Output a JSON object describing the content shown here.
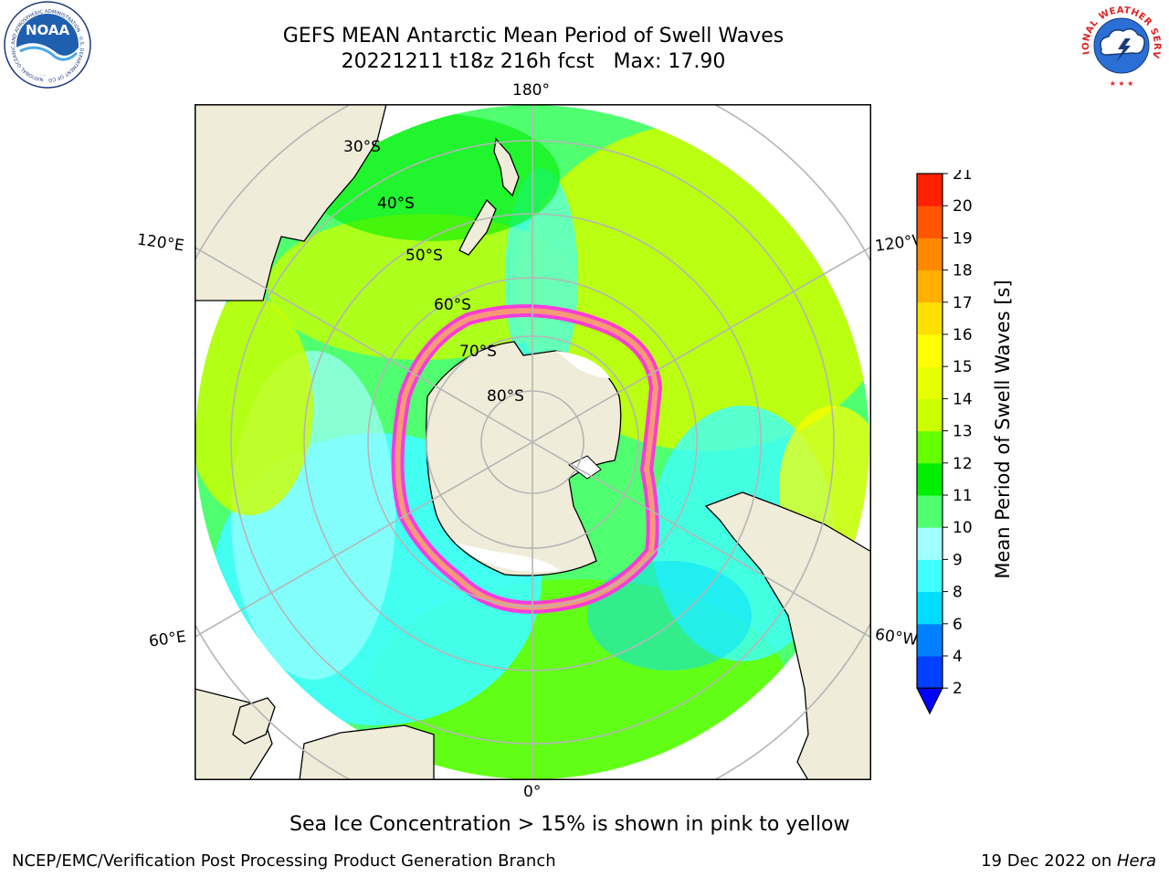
{
  "header": {
    "title_line1": "GEFS MEAN Antarctic Mean Period of Swell Waves",
    "title_line2": "20221211 t18z 216h fcst   Max: 17.90"
  },
  "logos": {
    "left": {
      "name": "noaa-logo",
      "text": "NOAA",
      "ring_text": "NATIONAL OCEANIC AND ATMOSPHERIC ADMINISTRATION · U.S. DEPARTMENT OF COMMERCE"
    },
    "right": {
      "name": "nws-logo",
      "ring_text": "NATIONAL WEATHER SERVICE"
    }
  },
  "map": {
    "projection": "south-polar-stereographic",
    "longitude_labels": {
      "top": "180°",
      "bottom": "0°",
      "upper_left": "120°E",
      "upper_right": "120°W",
      "lower_left": "60°E",
      "lower_right": "60°W"
    },
    "latitude_labels": [
      "30°S",
      "40°S",
      "50°S",
      "60°S",
      "70°S",
      "80°S"
    ],
    "colors": {
      "land": "#efecd9",
      "antarctica_ice": "#ffffff",
      "ocean_outside": "#ffffff",
      "grid": "#b5b5b5",
      "sea_ice_edge": "#ff33dd",
      "sea_ice_mid": "#f5b060"
    }
  },
  "colorbar": {
    "label": "Mean Period of Swell Waves [s]",
    "ticks": [
      "2",
      "4",
      "6",
      "8",
      "9",
      "10",
      "11",
      "12",
      "13",
      "14",
      "15",
      "16",
      "17",
      "18",
      "19",
      "20",
      "21"
    ],
    "colors": [
      "#0040ff",
      "#0080ff",
      "#00ddff",
      "#40ffff",
      "#a0ffff",
      "#50ff70",
      "#00ee00",
      "#66ff00",
      "#ccff00",
      "#e8ff00",
      "#ffff00",
      "#ffe000",
      "#ffb000",
      "#ff8800",
      "#ff5500",
      "#ff2000"
    ],
    "extend_below_color": "#0000ff"
  },
  "footnote": "Sea Ice Concentration > 15% is shown in pink to yellow",
  "credits": {
    "left": "NCEP/EMC/Verification Post Processing Product Generation Branch",
    "right_prefix": "19 Dec 2022 on ",
    "right_machine": "Hera"
  }
}
